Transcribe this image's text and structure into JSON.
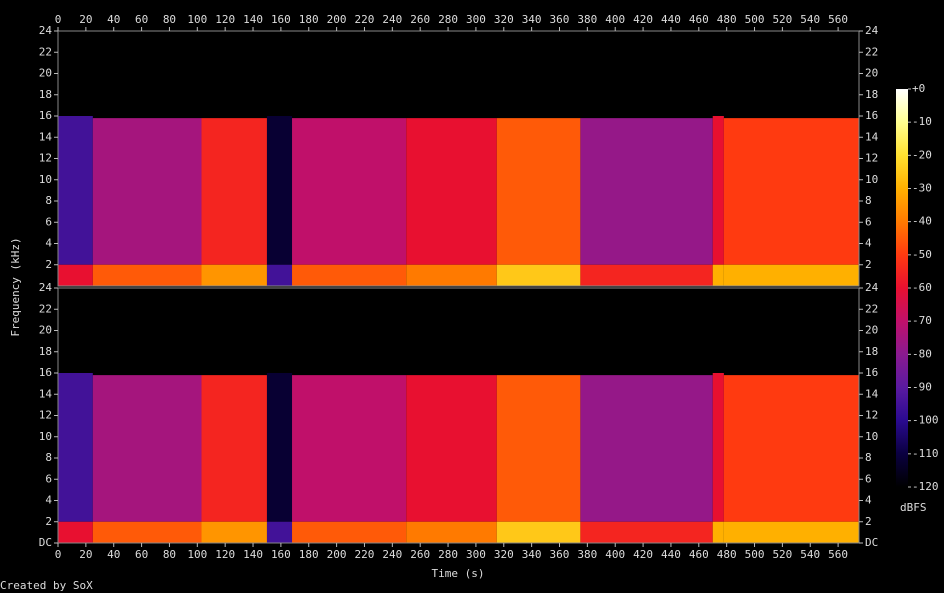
{
  "chart_data": {
    "type": "spectrogram",
    "xlabel": "Time (s)",
    "ylabel": "Frequency (kHz)",
    "footer": "Created by SoX",
    "xlim": [
      0,
      575
    ],
    "xticks": [
      0,
      20,
      40,
      60,
      80,
      100,
      120,
      140,
      160,
      180,
      200,
      220,
      240,
      260,
      280,
      300,
      320,
      340,
      360,
      380,
      400,
      420,
      440,
      460,
      480,
      500,
      520,
      540,
      560
    ],
    "channels": [
      {
        "ylim": [
          0,
          24
        ],
        "yticks": [
          2,
          4,
          6,
          8,
          10,
          12,
          14,
          16,
          18,
          20,
          22,
          24
        ]
      },
      {
        "ylim": [
          0,
          24
        ],
        "yticks": [
          {
            "value": 0,
            "label": "DC"
          },
          2,
          4,
          6,
          8,
          10,
          12,
          14,
          16,
          18,
          20,
          22,
          24
        ]
      }
    ],
    "bins": [
      0,
      25,
      103,
      150,
      168,
      250,
      315,
      375,
      470,
      478,
      575
    ],
    "levels": [
      -95,
      -75,
      -55,
      -112,
      -70,
      -60,
      -45,
      -78,
      -60,
      -50
    ],
    "low_levels": [
      -60,
      -45,
      -35,
      -95,
      -45,
      -40,
      -25,
      -55,
      -30,
      -30
    ],
    "cutoff_khz": [
      16,
      15.8,
      15.8,
      16,
      15.8,
      15.8,
      15.8,
      15.8,
      16,
      15.8
    ],
    "colorbar": {
      "label": "dBFS",
      "lim": [
        -120,
        0
      ],
      "ticks": [
        {
          "value": 0,
          "label": "+0"
        },
        -10,
        -20,
        -30,
        -40,
        -50,
        -60,
        -70,
        -80,
        -90,
        -100,
        -110,
        -120
      ],
      "colormap": [
        "#000000",
        "#0a0040",
        "#2a0a90",
        "#5a1aa0",
        "#8a1a90",
        "#c0106a",
        "#e81030",
        "#ff3a10",
        "#ff7a00",
        "#ffb000",
        "#ffe030",
        "#ffff90",
        "#ffffff"
      ]
    }
  }
}
